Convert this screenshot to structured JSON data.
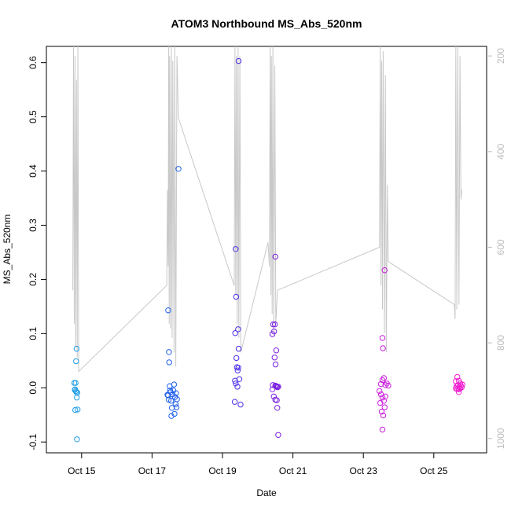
{
  "chart_data": {
    "type": "scatter",
    "title": "ATOM3 Northbound MS_Abs_520nm",
    "xlabel": "Date",
    "ylabel": "MS_Abs_520nm",
    "xlim": [
      "2016-10-14T00:00",
      "2016-10-26T12:00"
    ],
    "ylim": [
      -0.12,
      0.63
    ],
    "x_ticks": [
      {
        "date": "2016-10-15",
        "label": "Oct 15"
      },
      {
        "date": "2016-10-17",
        "label": "Oct 17"
      },
      {
        "date": "2016-10-19",
        "label": "Oct 19"
      },
      {
        "date": "2016-10-21",
        "label": "Oct 21"
      },
      {
        "date": "2016-10-23",
        "label": "Oct 23"
      },
      {
        "date": "2016-10-25",
        "label": "Oct 25"
      }
    ],
    "y_ticks": [
      -0.1,
      0.0,
      0.1,
      0.2,
      0.3,
      0.4,
      0.5,
      0.6
    ],
    "y2_range_bottom_top": [
      1030,
      180
    ],
    "y2_ticks": [
      200,
      400,
      600,
      800,
      1000
    ],
    "grid": false,
    "marker": "open circle",
    "point_colors": [
      "#1E9CE6",
      "#1F5FEA",
      "#4B2FE8",
      "#7A1FE0",
      "#C81EDC",
      "#F21ACF"
    ],
    "flights": [
      {
        "color": "#1E9CE6",
        "points": [
          [
            "2016-10-14T19:00",
            0.009
          ],
          [
            "2016-10-14T19:20",
            -0.004
          ],
          [
            "2016-10-14T19:30",
            -0.003
          ],
          [
            "2016-10-14T19:40",
            -0.041
          ],
          [
            "2016-10-14T19:55",
            0.009
          ],
          [
            "2016-10-14T20:05",
            -0.006
          ],
          [
            "2016-10-14T20:15",
            0.049
          ],
          [
            "2016-10-14T20:25",
            -0.008
          ],
          [
            "2016-10-14T20:35",
            0.072
          ],
          [
            "2016-10-14T20:45",
            -0.018
          ],
          [
            "2016-10-14T20:50",
            -0.095
          ],
          [
            "2016-10-14T21:05",
            -0.009
          ],
          [
            "2016-10-14T21:15",
            -0.04
          ]
        ]
      },
      {
        "color": "#1F5FEA",
        "points": [
          [
            "2016-10-17T11:00",
            0.143
          ],
          [
            "2016-10-17T11:30",
            0.066
          ],
          [
            "2016-10-17T11:40",
            0.047
          ],
          [
            "2016-10-17T10:30",
            -0.013
          ],
          [
            "2016-10-17T11:00",
            -0.014
          ],
          [
            "2016-10-17T11:20",
            -0.022
          ],
          [
            "2016-10-17T12:00",
            0.003
          ],
          [
            "2016-10-17T12:20",
            -0.005
          ],
          [
            "2016-10-17T12:40",
            -0.008
          ],
          [
            "2016-10-17T13:00",
            -0.024
          ],
          [
            "2016-10-17T13:10",
            -0.052
          ],
          [
            "2016-10-17T13:30",
            -0.037
          ],
          [
            "2016-10-17T14:00",
            -0.012
          ],
          [
            "2016-10-17T14:30",
            -0.005
          ],
          [
            "2016-10-17T15:00",
            0.006
          ],
          [
            "2016-10-17T15:20",
            -0.048
          ],
          [
            "2016-10-17T15:40",
            -0.017
          ],
          [
            "2016-10-17T16:00",
            -0.03
          ],
          [
            "2016-10-17T16:20",
            -0.01
          ],
          [
            "2016-10-17T16:40",
            -0.036
          ],
          [
            "2016-10-17T17:00",
            -0.021
          ],
          [
            "2016-10-17T18:00",
            0.404
          ]
        ]
      },
      {
        "color": "#4B2FE8",
        "points": [
          [
            "2016-10-19T09:00",
            0.256
          ],
          [
            "2016-10-19T09:20",
            0.168
          ],
          [
            "2016-10-19T08:40",
            0.101
          ],
          [
            "2016-10-19T10:40",
            0.108
          ],
          [
            "2016-10-19T09:30",
            0.055
          ],
          [
            "2016-10-19T10:20",
            0.032
          ],
          [
            "2016-10-19T11:00",
            0.072
          ],
          [
            "2016-10-19T09:50",
            0.038
          ],
          [
            "2016-10-19T10:50",
            0.037
          ],
          [
            "2016-10-19T11:30",
            0.016
          ],
          [
            "2016-10-19T08:30",
            0.013
          ],
          [
            "2016-10-19T09:00",
            0.008
          ],
          [
            "2016-10-19T10:10",
            0.002
          ],
          [
            "2016-10-19T08:20",
            -0.026
          ],
          [
            "2016-10-19T12:20",
            -0.031
          ],
          [
            "2016-10-19T11:00",
            0.603
          ]
        ]
      },
      {
        "color": "#7A1FE0",
        "points": [
          [
            "2016-10-20T10:00",
            0.099
          ],
          [
            "2016-10-20T10:30",
            0.117
          ],
          [
            "2016-10-20T11:40",
            0.117
          ],
          [
            "2016-10-20T12:00",
            0.242
          ],
          [
            "2016-10-20T11:10",
            0.104
          ],
          [
            "2016-10-20T11:30",
            0.056
          ],
          [
            "2016-10-20T12:40",
            0.069
          ],
          [
            "2016-10-20T12:10",
            0.043
          ],
          [
            "2016-10-20T10:20",
            0.005
          ],
          [
            "2016-10-20T12:00",
            0.004
          ],
          [
            "2016-10-20T12:30",
            0.003
          ],
          [
            "2016-10-20T13:00",
            0.002
          ],
          [
            "2016-10-20T13:30",
            0.001
          ],
          [
            "2016-10-20T14:00",
            0.002
          ],
          [
            "2016-10-20T10:00",
            -0.003
          ],
          [
            "2016-10-20T11:00",
            -0.016
          ],
          [
            "2016-10-20T12:00",
            -0.022
          ],
          [
            "2016-10-20T13:00",
            -0.023
          ],
          [
            "2016-10-20T13:20",
            -0.037
          ],
          [
            "2016-10-20T14:00",
            -0.087
          ]
        ]
      },
      {
        "color": "#C81EDC",
        "points": [
          [
            "2016-10-23T13:00",
            0.092
          ],
          [
            "2016-10-23T13:20",
            0.073
          ],
          [
            "2016-10-23T14:30",
            0.217
          ],
          [
            "2016-10-23T12:00",
            0.007
          ],
          [
            "2016-10-23T13:00",
            0.014
          ],
          [
            "2016-10-23T14:00",
            0.018
          ],
          [
            "2016-10-23T15:00",
            0.005
          ],
          [
            "2016-10-23T16:00",
            0.008
          ],
          [
            "2016-10-23T17:00",
            0.004
          ],
          [
            "2016-10-23T11:00",
            -0.006
          ],
          [
            "2016-10-23T12:00",
            -0.012
          ],
          [
            "2016-10-23T13:00",
            -0.018
          ],
          [
            "2016-10-23T14:00",
            -0.024
          ],
          [
            "2016-10-23T15:00",
            -0.016
          ],
          [
            "2016-10-23T11:30",
            -0.028
          ],
          [
            "2016-10-23T12:30",
            -0.044
          ],
          [
            "2016-10-23T13:30",
            -0.051
          ],
          [
            "2016-10-23T14:30",
            -0.036
          ],
          [
            "2016-10-23T13:00",
            -0.077
          ]
        ]
      },
      {
        "color": "#F21ACF",
        "points": [
          [
            "2016-10-25T15:00",
            0.012
          ],
          [
            "2016-10-25T16:00",
            0.02
          ],
          [
            "2016-10-25T17:00",
            0.013
          ],
          [
            "2016-10-25T18:00",
            0.008
          ],
          [
            "2016-10-25T15:30",
            0.003
          ],
          [
            "2016-10-25T16:30",
            0.005
          ],
          [
            "2016-10-25T17:30",
            0.002
          ],
          [
            "2016-10-25T18:30",
            0.004
          ],
          [
            "2016-10-25T19:30",
            0.006
          ],
          [
            "2016-10-25T15:00",
            -0.001
          ],
          [
            "2016-10-25T16:00",
            -0.002
          ],
          [
            "2016-10-25T17:00",
            -0.003
          ],
          [
            "2016-10-25T18:00",
            -0.001
          ],
          [
            "2016-10-25T19:00",
            0.001
          ],
          [
            "2016-10-25T17:00",
            -0.008
          ]
        ]
      }
    ],
    "secondary_series": {
      "color": "#c8c8c8",
      "axis": "right",
      "points": [
        [
          "2016-10-14T18:00",
          690
        ],
        [
          "2016-10-14T18:30",
          180
        ],
        [
          "2016-10-14T19:00",
          760
        ],
        [
          "2016-10-14T19:30",
          200
        ],
        [
          "2016-10-14T20:00",
          810
        ],
        [
          "2016-10-14T20:30",
          250
        ],
        [
          "2016-10-14T21:00",
          830
        ],
        [
          "2016-10-14T21:30",
          180
        ],
        [
          "2016-10-14T22:00",
          860
        ],
        [
          "2016-10-17T10:00",
          680
        ],
        [
          "2016-10-17T10:30",
          480
        ],
        [
          "2016-10-17T11:00",
          640
        ],
        [
          "2016-10-17T11:20",
          180
        ],
        [
          "2016-10-17T11:40",
          760
        ],
        [
          "2016-10-17T12:00",
          200
        ],
        [
          "2016-10-17T12:40",
          770
        ],
        [
          "2016-10-17T13:10",
          180
        ],
        [
          "2016-10-17T13:40",
          790
        ],
        [
          "2016-10-17T14:10",
          210
        ],
        [
          "2016-10-17T15:00",
          820
        ],
        [
          "2016-10-17T15:30",
          180
        ],
        [
          "2016-10-17T16:10",
          850
        ],
        [
          "2016-10-17T17:00",
          200
        ],
        [
          "2016-10-17T18:00",
          330
        ],
        [
          "2016-10-19T08:00",
          680
        ],
        [
          "2016-10-19T08:30",
          180
        ],
        [
          "2016-10-19T09:00",
          700
        ],
        [
          "2016-10-19T09:30",
          200
        ],
        [
          "2016-10-19T10:00",
          760
        ],
        [
          "2016-10-19T10:40",
          180
        ],
        [
          "2016-10-19T11:10",
          790
        ],
        [
          "2016-10-19T11:50",
          200
        ],
        [
          "2016-10-19T12:30",
          820
        ],
        [
          "2016-10-20T07:00",
          590
        ],
        [
          "2016-10-20T08:00",
          640
        ],
        [
          "2016-10-20T08:30",
          180
        ],
        [
          "2016-10-20T09:00",
          700
        ],
        [
          "2016-10-20T09:20",
          200
        ],
        [
          "2016-10-20T09:50",
          740
        ],
        [
          "2016-10-20T10:20",
          180
        ],
        [
          "2016-10-20T11:00",
          780
        ],
        [
          "2016-10-20T11:40",
          220
        ],
        [
          "2016-10-20T12:20",
          760
        ],
        [
          "2016-10-20T13:30",
          690
        ],
        [
          "2016-10-23T11:00",
          600
        ],
        [
          "2016-10-23T11:30",
          180
        ],
        [
          "2016-10-23T12:00",
          680
        ],
        [
          "2016-10-23T12:30",
          210
        ],
        [
          "2016-10-23T13:00",
          730
        ],
        [
          "2016-10-23T13:30",
          190
        ],
        [
          "2016-10-23T14:20",
          780
        ],
        [
          "2016-10-23T15:00",
          240
        ],
        [
          "2016-10-23T15:40",
          820
        ],
        [
          "2016-10-23T16:20",
          470
        ],
        [
          "2016-10-23T17:00",
          630
        ],
        [
          "2016-10-25T14:00",
          720
        ],
        [
          "2016-10-25T14:30",
          750
        ],
        [
          "2016-10-25T15:00",
          180
        ],
        [
          "2016-10-25T15:40",
          730
        ],
        [
          "2016-10-25T16:20",
          180
        ],
        [
          "2016-10-25T17:10",
          720
        ],
        [
          "2016-10-25T17:50",
          200
        ],
        [
          "2016-10-25T18:30",
          500
        ],
        [
          "2016-10-25T19:10",
          480
        ]
      ]
    }
  }
}
